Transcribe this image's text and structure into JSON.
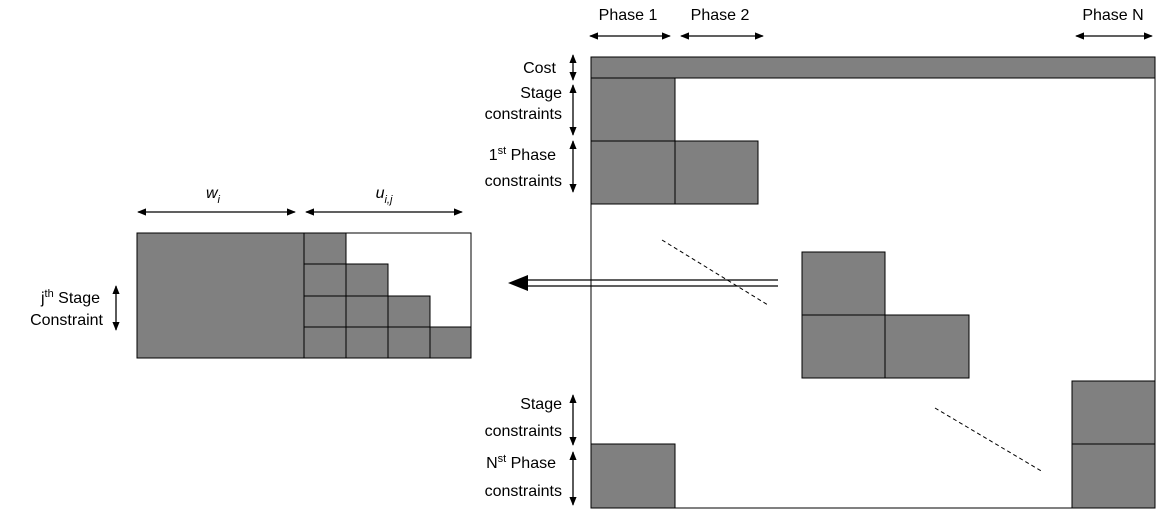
{
  "phases": [
    "Phase 1",
    "Phase 2",
    "Phase N"
  ],
  "rows": {
    "cost": "Cost",
    "stage_top": [
      "Stage",
      "constraints"
    ],
    "first_phase": {
      "ordinal": "1",
      "sup": "st",
      "rest": " Phase",
      "line2": "constraints"
    },
    "stage_bottom": [
      "Stage",
      "constraints"
    ],
    "nth_phase": {
      "ordinal": "N",
      "sup": "st",
      "rest": " Phase",
      "line2": "constraints"
    }
  },
  "detail": {
    "w": {
      "base": "w",
      "sub": "i"
    },
    "u": {
      "base": "u",
      "sub": "i,j"
    },
    "stage": {
      "ordinal": "j",
      "sup": "th",
      "rest": " Stage",
      "line2": "Constraint"
    }
  }
}
